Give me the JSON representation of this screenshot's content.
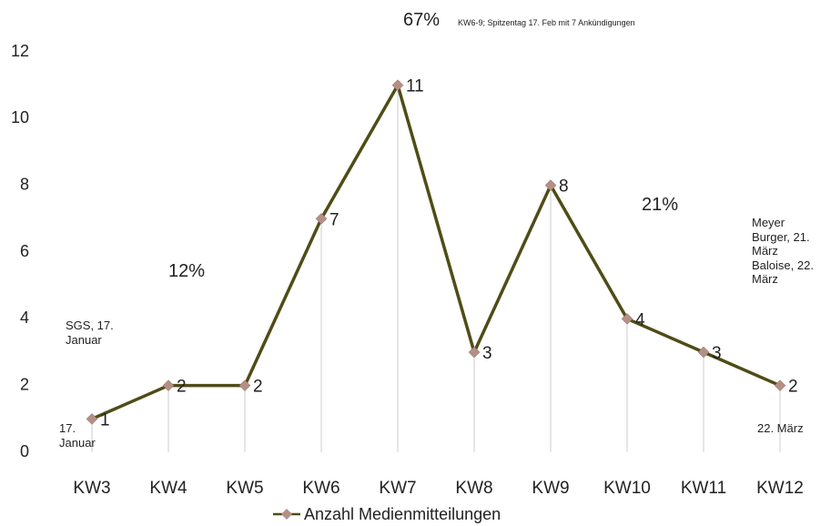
{
  "chart_data": {
    "type": "line",
    "categories": [
      "KW3",
      "KW4",
      "KW5",
      "KW6",
      "KW7",
      "KW8",
      "KW9",
      "KW10",
      "KW11",
      "KW12"
    ],
    "series": [
      {
        "name": "Anzahl Medienmitteilungen",
        "color": "#4f4c17",
        "marker_color": "#b58f85",
        "values": [
          1,
          2,
          2,
          7,
          11,
          3,
          8,
          4,
          3,
          2
        ]
      }
    ],
    "ylim": [
      0,
      12
    ],
    "yticks": [
      0,
      2,
      4,
      6,
      8,
      10,
      12
    ],
    "grid": false,
    "legend": "bottom",
    "annotations": [
      {
        "text": "67%"
      },
      {
        "text": "KW6-9; Spitzentag 17. Feb mit 7 Ankündigungen"
      },
      {
        "text": "12%"
      },
      {
        "text": "21%"
      },
      {
        "text": "SGS, 17. Januar"
      },
      {
        "text": "17. Januar"
      },
      {
        "text": "Meyer Burger, 21. März Baloise, 22. März"
      },
      {
        "text": "22. März"
      }
    ]
  }
}
